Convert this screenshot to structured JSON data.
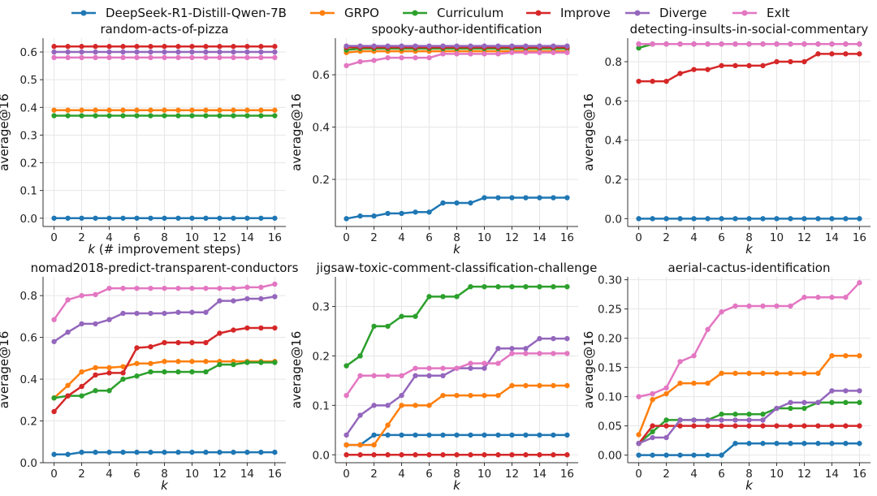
{
  "legend": [
    {
      "name": "DeepSeek-R1-Distill-Qwen-7B",
      "color": "#1f77b4"
    },
    {
      "name": "GRPO",
      "color": "#ff7f0e"
    },
    {
      "name": "Curriculum",
      "color": "#2ca02c"
    },
    {
      "name": "Improve",
      "color": "#d62728"
    },
    {
      "name": "Diverge",
      "color": "#9467bd"
    },
    {
      "name": "ExIt",
      "color": "#e377c2"
    }
  ],
  "chart_data": [
    {
      "type": "line",
      "title": "random-acts-of-pizza",
      "xlabel": "k (# improvement steps)",
      "ylabel": "average@16",
      "x": [
        0,
        1,
        2,
        3,
        4,
        5,
        6,
        7,
        8,
        9,
        10,
        11,
        12,
        13,
        14,
        15,
        16
      ],
      "xticks": [
        0,
        2,
        4,
        6,
        8,
        10,
        12,
        14,
        16
      ],
      "ylim": [
        -0.03,
        0.65
      ],
      "yticks": [
        0.0,
        0.1,
        0.2,
        0.3,
        0.4,
        0.5,
        0.6
      ],
      "ytick_labels": [
        "0.0",
        "0.1",
        "0.2",
        "0.3",
        "0.4",
        "0.5",
        "0.6"
      ],
      "series": [
        {
          "name": "DeepSeek-R1-Distill-Qwen-7B",
          "values": [
            0,
            0,
            0,
            0,
            0,
            0,
            0,
            0,
            0,
            0,
            0,
            0,
            0,
            0,
            0,
            0,
            0
          ]
        },
        {
          "name": "GRPO",
          "values": [
            0.39,
            0.39,
            0.39,
            0.39,
            0.39,
            0.39,
            0.39,
            0.39,
            0.39,
            0.39,
            0.39,
            0.39,
            0.39,
            0.39,
            0.39,
            0.39,
            0.39
          ]
        },
        {
          "name": "Curriculum",
          "values": [
            0.37,
            0.37,
            0.37,
            0.37,
            0.37,
            0.37,
            0.37,
            0.37,
            0.37,
            0.37,
            0.37,
            0.37,
            0.37,
            0.37,
            0.37,
            0.37,
            0.37
          ]
        },
        {
          "name": "Improve",
          "values": [
            0.62,
            0.62,
            0.62,
            0.62,
            0.62,
            0.62,
            0.62,
            0.62,
            0.62,
            0.62,
            0.62,
            0.62,
            0.62,
            0.62,
            0.62,
            0.62,
            0.62
          ]
        },
        {
          "name": "Diverge",
          "values": [
            0.6,
            0.6,
            0.6,
            0.6,
            0.6,
            0.6,
            0.6,
            0.6,
            0.6,
            0.6,
            0.6,
            0.6,
            0.6,
            0.6,
            0.6,
            0.6,
            0.6
          ]
        },
        {
          "name": "ExIt",
          "values": [
            0.58,
            0.58,
            0.58,
            0.58,
            0.58,
            0.58,
            0.58,
            0.58,
            0.58,
            0.58,
            0.58,
            0.58,
            0.58,
            0.58,
            0.58,
            0.58,
            0.58
          ]
        }
      ]
    },
    {
      "type": "line",
      "title": "spooky-author-identification",
      "xlabel": "k",
      "ylabel": "average@16",
      "x": [
        0,
        1,
        2,
        3,
        4,
        5,
        6,
        7,
        8,
        9,
        10,
        11,
        12,
        13,
        14,
        15,
        16
      ],
      "xticks": [
        0,
        2,
        4,
        6,
        8,
        10,
        12,
        14,
        16
      ],
      "ylim": [
        0.02,
        0.74
      ],
      "yticks": [
        0.2,
        0.4,
        0.6
      ],
      "ytick_labels": [
        "0.2",
        "0.4",
        "0.6"
      ],
      "series": [
        {
          "name": "DeepSeek-R1-Distill-Qwen-7B",
          "values": [
            0.05,
            0.06,
            0.06,
            0.07,
            0.07,
            0.075,
            0.075,
            0.11,
            0.11,
            0.11,
            0.13,
            0.13,
            0.13,
            0.13,
            0.13,
            0.13,
            0.13
          ]
        },
        {
          "name": "GRPO",
          "values": [
            0.685,
            0.69,
            0.69,
            0.69,
            0.69,
            0.69,
            0.69,
            0.69,
            0.69,
            0.69,
            0.69,
            0.69,
            0.69,
            0.69,
            0.69,
            0.69,
            0.69
          ]
        },
        {
          "name": "Curriculum",
          "values": [
            0.695,
            0.7,
            0.7,
            0.7,
            0.7,
            0.7,
            0.7,
            0.7,
            0.7,
            0.7,
            0.7,
            0.7,
            0.7,
            0.7,
            0.7,
            0.7,
            0.7
          ]
        },
        {
          "name": "Improve",
          "values": [
            0.705,
            0.705,
            0.705,
            0.705,
            0.705,
            0.705,
            0.705,
            0.705,
            0.705,
            0.705,
            0.705,
            0.705,
            0.705,
            0.705,
            0.705,
            0.705,
            0.705
          ]
        },
        {
          "name": "Diverge",
          "values": [
            0.71,
            0.71,
            0.71,
            0.71,
            0.71,
            0.71,
            0.71,
            0.71,
            0.71,
            0.71,
            0.71,
            0.71,
            0.71,
            0.71,
            0.71,
            0.71,
            0.71
          ]
        },
        {
          "name": "ExIt",
          "values": [
            0.635,
            0.65,
            0.655,
            0.665,
            0.665,
            0.665,
            0.665,
            0.68,
            0.68,
            0.68,
            0.68,
            0.68,
            0.685,
            0.685,
            0.685,
            0.685,
            0.685
          ]
        }
      ]
    },
    {
      "type": "line",
      "title": "detecting-insults-in-social-commentary",
      "xlabel": "k",
      "ylabel": "average@16",
      "x": [
        0,
        1,
        2,
        3,
        4,
        5,
        6,
        7,
        8,
        9,
        10,
        11,
        12,
        13,
        14,
        15,
        16
      ],
      "xticks": [
        0,
        2,
        4,
        6,
        8,
        10,
        12,
        14,
        16
      ],
      "ylim": [
        -0.04,
        0.92
      ],
      "yticks": [
        0.0,
        0.2,
        0.4,
        0.6,
        0.8
      ],
      "ytick_labels": [
        "0.0",
        "0.2",
        "0.4",
        "0.6",
        "0.8"
      ],
      "series": [
        {
          "name": "DeepSeek-R1-Distill-Qwen-7B",
          "values": [
            0,
            0,
            0,
            0,
            0,
            0,
            0,
            0,
            0,
            0,
            0,
            0,
            0,
            0,
            0,
            0,
            0
          ]
        },
        {
          "name": "GRPO",
          "values": [
            0.89,
            0.89,
            0.89,
            0.89,
            0.89,
            0.89,
            0.89,
            0.89,
            0.89,
            0.89,
            0.89,
            0.89,
            0.89,
            0.89,
            0.89,
            0.89,
            0.89
          ]
        },
        {
          "name": "Curriculum",
          "values": [
            0.87,
            0.89,
            0.89,
            0.89,
            0.89,
            0.89,
            0.89,
            0.89,
            0.89,
            0.89,
            0.89,
            0.89,
            0.89,
            0.89,
            0.89,
            0.89,
            0.89
          ]
        },
        {
          "name": "Improve",
          "values": [
            0.7,
            0.7,
            0.7,
            0.74,
            0.76,
            0.76,
            0.78,
            0.78,
            0.78,
            0.78,
            0.8,
            0.8,
            0.8,
            0.84,
            0.84,
            0.84,
            0.84
          ]
        },
        {
          "name": "Diverge",
          "values": [
            0.89,
            0.89,
            0.89,
            0.89,
            0.89,
            0.89,
            0.89,
            0.89,
            0.89,
            0.89,
            0.89,
            0.89,
            0.89,
            0.89,
            0.89,
            0.89,
            0.89
          ]
        },
        {
          "name": "ExIt",
          "values": [
            0.89,
            0.89,
            0.89,
            0.89,
            0.89,
            0.89,
            0.89,
            0.89,
            0.89,
            0.89,
            0.89,
            0.89,
            0.89,
            0.89,
            0.89,
            0.89,
            0.89
          ]
        }
      ]
    },
    {
      "type": "line",
      "title": "nomad2018-predict-transparent-conductors",
      "xlabel": "k",
      "ylabel": "average@16",
      "x": [
        0,
        1,
        2,
        3,
        4,
        5,
        6,
        7,
        8,
        9,
        10,
        11,
        12,
        13,
        14,
        15,
        16
      ],
      "xticks": [
        0,
        2,
        4,
        6,
        8,
        10,
        12,
        14,
        16
      ],
      "ylim": [
        0.0,
        0.89
      ],
      "yticks": [
        0.0,
        0.2,
        0.4,
        0.6,
        0.8
      ],
      "ytick_labels": [
        "0.0",
        "0.2",
        "0.4",
        "0.6",
        "0.8"
      ],
      "series": [
        {
          "name": "DeepSeek-R1-Distill-Qwen-7B",
          "values": [
            0.04,
            0.04,
            0.05,
            0.05,
            0.05,
            0.05,
            0.05,
            0.05,
            0.05,
            0.05,
            0.05,
            0.05,
            0.05,
            0.05,
            0.05,
            0.05,
            0.05
          ]
        },
        {
          "name": "GRPO",
          "values": [
            0.31,
            0.37,
            0.435,
            0.455,
            0.455,
            0.46,
            0.475,
            0.475,
            0.485,
            0.485,
            0.485,
            0.485,
            0.485,
            0.485,
            0.485,
            0.485,
            0.485
          ]
        },
        {
          "name": "Curriculum",
          "values": [
            0.31,
            0.32,
            0.32,
            0.345,
            0.345,
            0.4,
            0.415,
            0.435,
            0.435,
            0.435,
            0.435,
            0.435,
            0.47,
            0.47,
            0.48,
            0.48,
            0.48
          ]
        },
        {
          "name": "Improve",
          "values": [
            0.245,
            0.32,
            0.365,
            0.42,
            0.43,
            0.43,
            0.55,
            0.555,
            0.575,
            0.575,
            0.575,
            0.575,
            0.62,
            0.635,
            0.645,
            0.645,
            0.645
          ]
        },
        {
          "name": "Diverge",
          "values": [
            0.58,
            0.625,
            0.665,
            0.665,
            0.685,
            0.715,
            0.715,
            0.715,
            0.715,
            0.72,
            0.72,
            0.72,
            0.775,
            0.775,
            0.785,
            0.785,
            0.795
          ]
        },
        {
          "name": "ExIt",
          "values": [
            0.685,
            0.78,
            0.8,
            0.805,
            0.835,
            0.835,
            0.835,
            0.835,
            0.835,
            0.835,
            0.835,
            0.835,
            0.835,
            0.835,
            0.84,
            0.84,
            0.855
          ]
        }
      ]
    },
    {
      "type": "line",
      "title": "jigsaw-toxic-comment-classification-challenge",
      "xlabel": "k",
      "ylabel": "average@16",
      "x": [
        0,
        1,
        2,
        3,
        4,
        5,
        6,
        7,
        8,
        9,
        10,
        11,
        12,
        13,
        14,
        15,
        16
      ],
      "xticks": [
        0,
        2,
        4,
        6,
        8,
        10,
        12,
        14,
        16
      ],
      "ylim": [
        -0.016,
        0.36
      ],
      "yticks": [
        0.0,
        0.1,
        0.2,
        0.3
      ],
      "ytick_labels": [
        "0.0",
        "0.1",
        "0.2",
        "0.3"
      ],
      "series": [
        {
          "name": "DeepSeek-R1-Distill-Qwen-7B",
          "values": [
            0.02,
            0.02,
            0.04,
            0.04,
            0.04,
            0.04,
            0.04,
            0.04,
            0.04,
            0.04,
            0.04,
            0.04,
            0.04,
            0.04,
            0.04,
            0.04,
            0.04
          ]
        },
        {
          "name": "GRPO",
          "values": [
            0.02,
            0.02,
            0.02,
            0.06,
            0.1,
            0.1,
            0.1,
            0.12,
            0.12,
            0.12,
            0.12,
            0.12,
            0.14,
            0.14,
            0.14,
            0.14,
            0.14
          ]
        },
        {
          "name": "Curriculum",
          "values": [
            0.18,
            0.2,
            0.26,
            0.26,
            0.28,
            0.28,
            0.32,
            0.32,
            0.32,
            0.34,
            0.34,
            0.34,
            0.34,
            0.34,
            0.34,
            0.34,
            0.34
          ]
        },
        {
          "name": "Improve",
          "values": [
            0,
            0,
            0,
            0,
            0,
            0,
            0,
            0,
            0,
            0,
            0,
            0,
            0,
            0,
            0,
            0,
            0
          ]
        },
        {
          "name": "Diverge",
          "values": [
            0.04,
            0.08,
            0.1,
            0.1,
            0.12,
            0.16,
            0.16,
            0.16,
            0.175,
            0.175,
            0.175,
            0.215,
            0.215,
            0.215,
            0.235,
            0.235,
            0.235
          ]
        },
        {
          "name": "ExIt",
          "values": [
            0.12,
            0.16,
            0.16,
            0.16,
            0.16,
            0.175,
            0.175,
            0.175,
            0.175,
            0.185,
            0.185,
            0.185,
            0.205,
            0.205,
            0.205,
            0.205,
            0.205
          ]
        }
      ]
    },
    {
      "type": "line",
      "title": "aerial-cactus-identification",
      "xlabel": "k",
      "ylabel": "average@16",
      "x": [
        0,
        1,
        2,
        3,
        4,
        5,
        6,
        7,
        8,
        9,
        10,
        11,
        12,
        13,
        14,
        15,
        16
      ],
      "xticks": [
        0,
        2,
        4,
        6,
        8,
        10,
        12,
        14,
        16
      ],
      "ylim": [
        -0.013,
        0.305
      ],
      "yticks": [
        0.0,
        0.05,
        0.1,
        0.15,
        0.2,
        0.25,
        0.3
      ],
      "ytick_labels": [
        "0.00",
        "0.05",
        "0.10",
        "0.15",
        "0.20",
        "0.25",
        "0.30"
      ],
      "series": [
        {
          "name": "DeepSeek-R1-Distill-Qwen-7B",
          "values": [
            0,
            0,
            0,
            0,
            0,
            0,
            0,
            0.02,
            0.02,
            0.02,
            0.02,
            0.02,
            0.02,
            0.02,
            0.02,
            0.02,
            0.02
          ]
        },
        {
          "name": "GRPO",
          "values": [
            0.035,
            0.095,
            0.105,
            0.123,
            0.123,
            0.123,
            0.14,
            0.14,
            0.14,
            0.14,
            0.14,
            0.14,
            0.14,
            0.14,
            0.17,
            0.17,
            0.17
          ]
        },
        {
          "name": "Curriculum",
          "values": [
            0.02,
            0.04,
            0.06,
            0.06,
            0.06,
            0.06,
            0.07,
            0.07,
            0.07,
            0.07,
            0.08,
            0.08,
            0.08,
            0.09,
            0.09,
            0.09,
            0.09
          ]
        },
        {
          "name": "Improve",
          "values": [
            0.02,
            0.05,
            0.05,
            0.05,
            0.05,
            0.05,
            0.05,
            0.05,
            0.05,
            0.05,
            0.05,
            0.05,
            0.05,
            0.05,
            0.05,
            0.05,
            0.05
          ]
        },
        {
          "name": "Diverge",
          "values": [
            0.02,
            0.03,
            0.03,
            0.06,
            0.06,
            0.06,
            0.06,
            0.06,
            0.06,
            0.06,
            0.08,
            0.09,
            0.09,
            0.09,
            0.11,
            0.11,
            0.11
          ]
        },
        {
          "name": "ExIt",
          "values": [
            0.1,
            0.105,
            0.115,
            0.16,
            0.17,
            0.215,
            0.245,
            0.255,
            0.255,
            0.255,
            0.255,
            0.255,
            0.27,
            0.27,
            0.27,
            0.27,
            0.295
          ]
        }
      ]
    }
  ]
}
